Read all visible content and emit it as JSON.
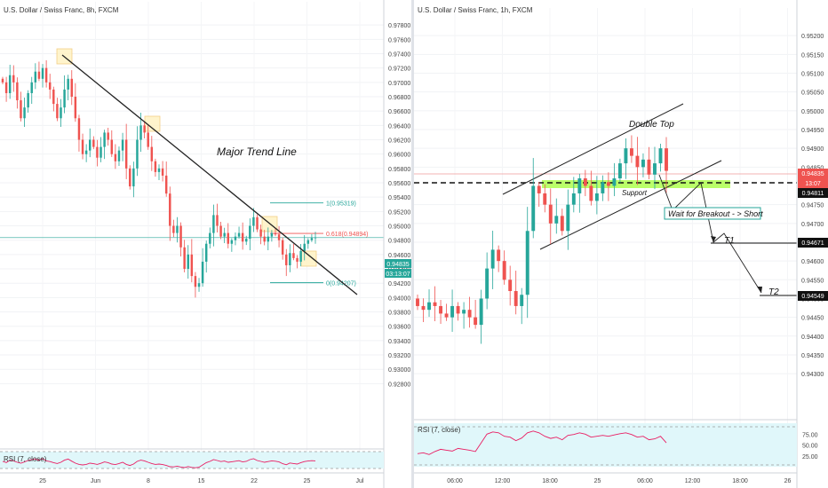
{
  "left_chart": {
    "title": "U.S. Dollar / Swiss Franc, 8h, FXCM",
    "annotation": "Major Trend Line",
    "rsi_label": "RSI (7, close)",
    "price_badge": "0.94835",
    "timer_badge": "03:13:07",
    "fib_labels": [
      "1(0.95319)",
      "0.618(0.94894)",
      "0(0.94207)"
    ]
  },
  "right_chart": {
    "title": "U.S. Dollar / Swiss Franc, 1h, FXCM",
    "labels": {
      "double_top": "Double Top",
      "support": "Support",
      "breakout": "Wait for Breakout - > Short",
      "t1": "T1",
      "t2": "T2"
    },
    "rsi_label": "RSI (7, close)",
    "badges": {
      "price": "0.94835",
      "timer": "13:07",
      "support_level": "0.94811",
      "t1_level": "0.94671",
      "t2_level": "0.94549"
    }
  },
  "colors": {
    "up": "#26a69a",
    "down": "#ef5350",
    "rsi_line": "#e91e63",
    "rsi_band": "#e0f7fa",
    "support_zone": "#b2ff59",
    "highlight_box": "#fff3c4"
  },
  "chart_data": [
    {
      "type": "candlestick",
      "title": "U.S. Dollar / Swiss Franc, 8h, FXCM",
      "ylim": [
        0.9205,
        0.98
      ],
      "y_ticks": [
        0.978,
        0.976,
        0.974,
        0.972,
        0.97,
        0.968,
        0.966,
        0.964,
        0.962,
        0.96,
        0.958,
        0.956,
        0.954,
        0.952,
        0.95,
        0.948,
        0.946,
        0.944,
        0.942,
        0.94,
        0.938,
        0.936,
        0.934,
        0.932,
        0.93,
        0.928
      ],
      "x_ticks": [
        "25",
        "Jun",
        "8",
        "15",
        "22",
        "25",
        "Jul"
      ],
      "close": [
        0.97,
        0.9685,
        0.971,
        0.97,
        0.9675,
        0.965,
        0.9665,
        0.9685,
        0.97,
        0.9715,
        0.9705,
        0.972,
        0.97,
        0.969,
        0.967,
        0.965,
        0.9665,
        0.969,
        0.9705,
        0.968,
        0.965,
        0.962,
        0.96,
        0.9605,
        0.962,
        0.961,
        0.9595,
        0.961,
        0.963,
        0.962,
        0.96,
        0.959,
        0.9605,
        0.962,
        0.958,
        0.9555,
        0.958,
        0.962,
        0.964,
        0.963,
        0.961,
        0.959,
        0.9575,
        0.958,
        0.957,
        0.9545,
        0.95,
        0.949,
        0.95,
        0.947,
        0.944,
        0.946,
        0.943,
        0.9415,
        0.942,
        0.945,
        0.9475,
        0.949,
        0.9515,
        0.95,
        0.9485,
        0.949,
        0.9475,
        0.948,
        0.9485,
        0.949,
        0.9478,
        0.9482,
        0.95,
        0.9512,
        0.9495,
        0.9485,
        0.9478,
        0.9485,
        0.949,
        0.9488,
        0.948,
        0.946,
        0.9445,
        0.9462,
        0.9455,
        0.945,
        0.9465,
        0.9475,
        0.948,
        0.9483,
        0.9484
      ],
      "fib": [
        {
          "level": "1",
          "price": 0.95319
        },
        {
          "level": "0.618",
          "price": 0.94894
        },
        {
          "level": "0",
          "price": 0.94207
        }
      ],
      "current_price": 0.94835,
      "rsi": {
        "label": "RSI (7, close)",
        "ylim": [
          0,
          100
        ],
        "values": [
          45,
          38,
          52,
          48,
          40,
          35,
          42,
          50,
          55,
          58,
          52,
          60,
          48,
          44,
          38,
          33,
          40,
          52,
          58,
          46,
          35,
          28,
          25,
          28,
          35,
          32,
          28,
          34,
          42,
          38,
          30,
          27,
          33,
          40,
          28,
          22,
          30,
          45,
          52,
          48,
          40,
          33,
          28,
          30,
          27,
          22,
          15,
          14,
          18,
          13,
          10,
          16,
          11,
          9,
          12,
          25,
          38,
          45,
          55,
          50,
          44,
          47,
          40,
          43,
          46,
          49,
          42,
          45,
          55,
          60,
          50,
          45,
          40,
          44,
          48,
          46,
          42,
          32,
          26,
          36,
          33,
          30,
          38,
          44,
          47,
          49,
          48
        ]
      }
    },
    {
      "type": "candlestick",
      "title": "U.S. Dollar / Swiss Franc, 1h, FXCM",
      "ylim": [
        0.9422,
        0.9525
      ],
      "y_ticks": [
        0.952,
        0.9515,
        0.951,
        0.9505,
        0.95,
        0.9495,
        0.949,
        0.9485,
        0.9475,
        0.947,
        0.9465,
        0.946,
        0.9455,
        0.945,
        0.9445,
        0.944,
        0.9435,
        0.943
      ],
      "x_ticks": [
        "06:00",
        "12:00",
        "18:00",
        "25",
        "06:00",
        "12:00",
        "18:00",
        "26"
      ],
      "close": [
        0.9448,
        0.9447,
        0.9449,
        0.9448,
        0.9446,
        0.9445,
        0.9448,
        0.9446,
        0.9447,
        0.9445,
        0.9443,
        0.945,
        0.9458,
        0.9463,
        0.946,
        0.9455,
        0.9452,
        0.9448,
        0.9451,
        0.9468,
        0.948,
        0.9478,
        0.9475,
        0.947,
        0.9472,
        0.9468,
        0.9475,
        0.9478,
        0.9482,
        0.948,
        0.9476,
        0.9478,
        0.9481,
        0.948,
        0.9482,
        0.9486,
        0.949,
        0.9488,
        0.9485,
        0.9487,
        0.9483,
        0.9486,
        0.949,
        0.9484
      ],
      "lines": {
        "support": 0.94811,
        "t1": 0.94671,
        "t2": 0.94549,
        "current_price": 0.94835
      },
      "rsi": {
        "label": "RSI (7, close)",
        "ylim": [
          0,
          100
        ],
        "y_ticks": [
          75.0,
          50.0,
          25.0
        ],
        "values": [
          30,
          32,
          28,
          35,
          40,
          38,
          36,
          42,
          40,
          38,
          35,
          55,
          75,
          80,
          78,
          70,
          68,
          60,
          66,
          78,
          82,
          78,
          70,
          65,
          68,
          62,
          72,
          74,
          78,
          75,
          68,
          70,
          72,
          70,
          73,
          76,
          78,
          74,
          68,
          70,
          62,
          64,
          70,
          55
        ]
      }
    }
  ]
}
